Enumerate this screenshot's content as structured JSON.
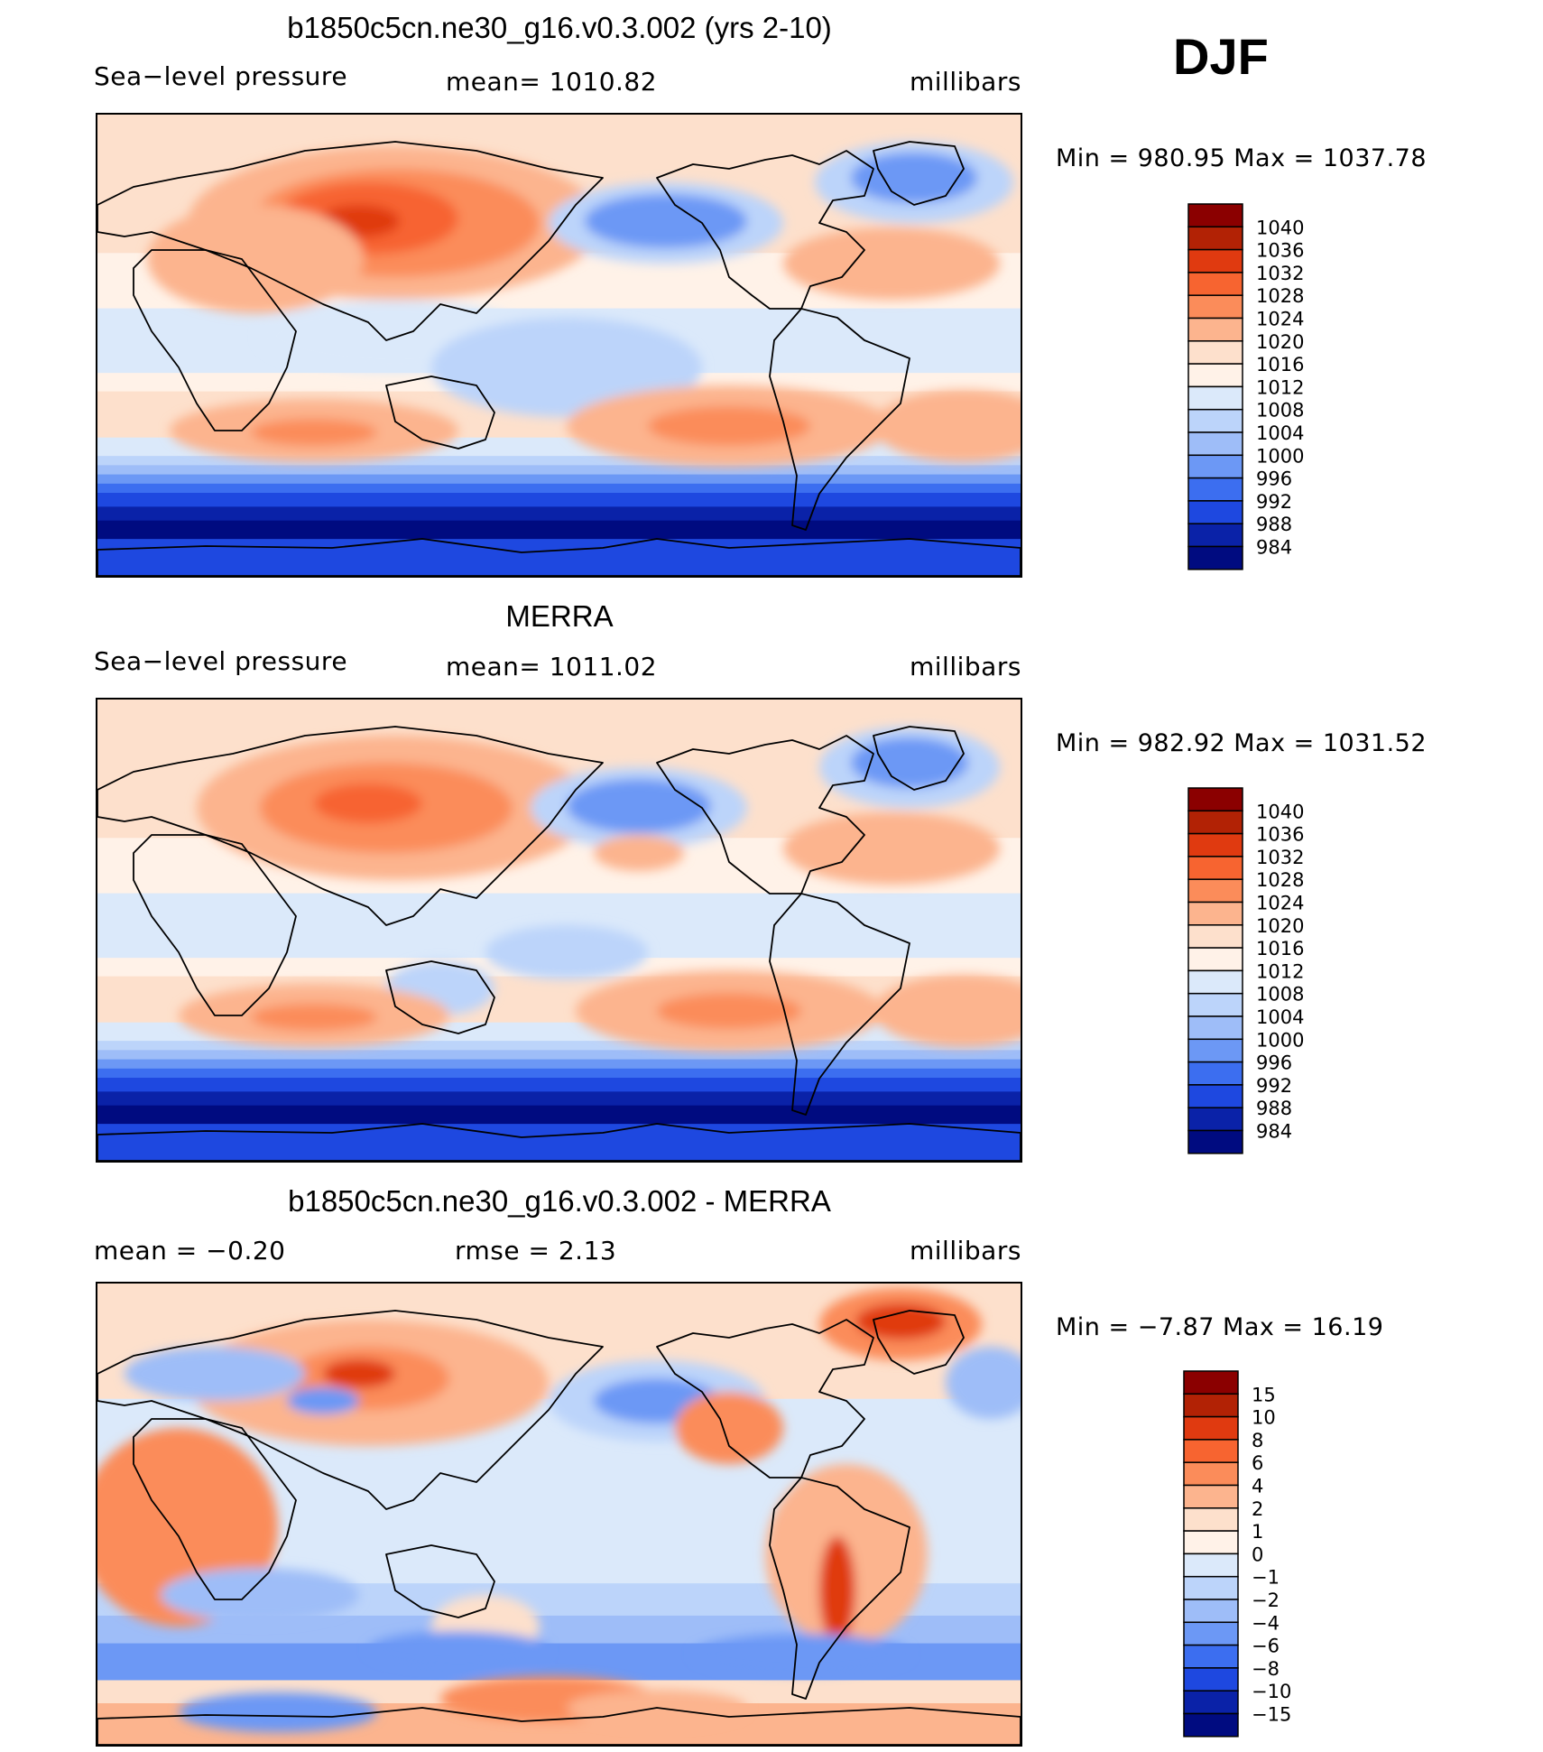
{
  "season": "DJF",
  "panels": [
    {
      "title": "b1850c5cn.ne30_g16.v0.3.002 (yrs 2-10)",
      "left_label": "Sea−level pressure",
      "center_label": "mean=  1010.82",
      "units": "millibars",
      "minmax": "Min  =  980.95  Max  =  1037.78"
    },
    {
      "title": "MERRA",
      "left_label": "Sea−level pressure",
      "center_label": "mean=  1011.02",
      "units": "millibars",
      "minmax": "Min  =  982.92  Max  =  1031.52"
    },
    {
      "title": "b1850c5cn.ne30_g16.v0.3.002 - MERRA",
      "left_label": "mean  =    −0.20",
      "center_label": "rmse  =     2.13",
      "units": "millibars",
      "minmax": "Min  =   −7.87  Max  =    16.19"
    }
  ],
  "chart_data": [
    {
      "type": "heatmap",
      "title": "b1850c5cn.ne30_g16.v0.3.002 (yrs 2-10)",
      "variable": "Sea-level pressure",
      "units": "millibars",
      "mean": 1010.82,
      "min": 980.95,
      "max": 1037.78,
      "colorbar_levels": [
        "1040",
        "1036",
        "1032",
        "1028",
        "1024",
        "1020",
        "1016",
        "1012",
        "1008",
        "1004",
        "1000",
        "996",
        "992",
        "988",
        "984"
      ],
      "colorbar_colors": [
        "#8b0000",
        "#b22205",
        "#e03a10",
        "#f76430",
        "#fb8c5a",
        "#fcb48e",
        "#fde0cc",
        "#fff2e8",
        "#dbe9fa",
        "#bcd4fa",
        "#9ebdf8",
        "#6c98f5",
        "#3c6ef0",
        "#1e48e0",
        "#0a22a8",
        "#000b80"
      ]
    },
    {
      "type": "heatmap",
      "title": "MERRA",
      "variable": "Sea-level pressure",
      "units": "millibars",
      "mean": 1011.02,
      "min": 982.92,
      "max": 1031.52,
      "colorbar_levels": [
        "1040",
        "1036",
        "1032",
        "1028",
        "1024",
        "1020",
        "1016",
        "1012",
        "1008",
        "1004",
        "1000",
        "996",
        "992",
        "988",
        "984"
      ],
      "colorbar_colors": [
        "#8b0000",
        "#b22205",
        "#e03a10",
        "#f76430",
        "#fb8c5a",
        "#fcb48e",
        "#fde0cc",
        "#fff2e8",
        "#dbe9fa",
        "#bcd4fa",
        "#9ebdf8",
        "#6c98f5",
        "#3c6ef0",
        "#1e48e0",
        "#0a22a8",
        "#000b80"
      ]
    },
    {
      "type": "heatmap",
      "title": "b1850c5cn.ne30_g16.v0.3.002 - MERRA",
      "variable": "Sea-level pressure difference",
      "units": "millibars",
      "mean": -0.2,
      "rmse": 2.13,
      "min": -7.87,
      "max": 16.19,
      "colorbar_levels": [
        "15",
        "10",
        "8",
        "6",
        "4",
        "2",
        "1",
        "0",
        "−1",
        "−2",
        "−4",
        "−6",
        "−8",
        "−10",
        "−15"
      ],
      "colorbar_colors": [
        "#8b0000",
        "#b22205",
        "#e03a10",
        "#f76430",
        "#fb8c5a",
        "#fcb48e",
        "#fde0cc",
        "#fff2e8",
        "#dbe9fa",
        "#bcd4fa",
        "#9ebdf8",
        "#6c98f5",
        "#3c6ef0",
        "#1e48e0",
        "#0a22a8",
        "#000b80"
      ]
    }
  ]
}
